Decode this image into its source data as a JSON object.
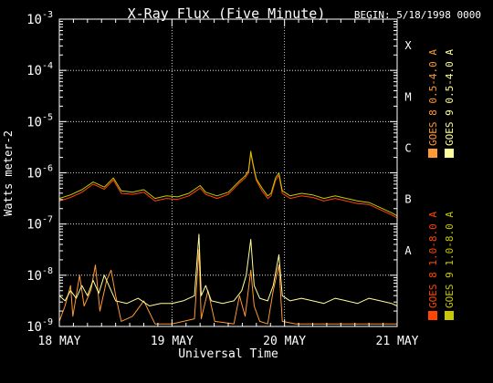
{
  "chart_data": {
    "type": "line",
    "title": "X-Ray Flux (Five Minute)",
    "begin_label": "BEGIN: 5/18/1998 0000",
    "xlabel": "Universal Time",
    "ylabel": "Watts meter-2",
    "x_ticks": [
      {
        "day": 0,
        "label": "18 MAY"
      },
      {
        "day": 1,
        "label": "19 MAY"
      },
      {
        "day": 2,
        "label": "20 MAY"
      },
      {
        "day": 3,
        "label": "21 MAY"
      }
    ],
    "xlim_days": [
      0,
      3
    ],
    "ylim_exp": [
      -9,
      -3
    ],
    "y_ticks": [
      {
        "exp": -9,
        "base": "10",
        "sup": "-9"
      },
      {
        "exp": -8,
        "base": "10",
        "sup": "-8"
      },
      {
        "exp": -7,
        "base": "10",
        "sup": "-7"
      },
      {
        "exp": -6,
        "base": "10",
        "sup": "-6"
      },
      {
        "exp": -5,
        "base": "10",
        "sup": "-5"
      },
      {
        "exp": -4,
        "base": "10",
        "sup": "-4"
      },
      {
        "exp": -3,
        "base": "10",
        "sup": "-3"
      }
    ],
    "flare_classes": [
      {
        "exp": -8,
        "label": "A"
      },
      {
        "exp": -7,
        "label": "B"
      },
      {
        "exp": -6,
        "label": "C"
      },
      {
        "exp": -5,
        "label": "M"
      },
      {
        "exp": -4,
        "label": "X"
      }
    ],
    "grid": true,
    "legend_position": "right",
    "series": [
      {
        "name": "GOES 8 1.0-8.0 A",
        "color": "#ff4500",
        "points": [
          [
            0.0,
            -6.55
          ],
          [
            0.1,
            -6.48
          ],
          [
            0.2,
            -6.38
          ],
          [
            0.3,
            -6.22
          ],
          [
            0.4,
            -6.32
          ],
          [
            0.48,
            -6.14
          ],
          [
            0.55,
            -6.4
          ],
          [
            0.65,
            -6.42
          ],
          [
            0.75,
            -6.38
          ],
          [
            0.85,
            -6.55
          ],
          [
            0.95,
            -6.5
          ],
          [
            1.05,
            -6.52
          ],
          [
            1.15,
            -6.45
          ],
          [
            1.25,
            -6.3
          ],
          [
            1.3,
            -6.42
          ],
          [
            1.4,
            -6.5
          ],
          [
            1.5,
            -6.42
          ],
          [
            1.6,
            -6.2
          ],
          [
            1.65,
            -6.1
          ],
          [
            1.68,
            -6.0
          ],
          [
            1.7,
            -5.62
          ],
          [
            1.72,
            -5.85
          ],
          [
            1.75,
            -6.15
          ],
          [
            1.8,
            -6.35
          ],
          [
            1.85,
            -6.5
          ],
          [
            1.88,
            -6.45
          ],
          [
            1.92,
            -6.15
          ],
          [
            1.95,
            -6.05
          ],
          [
            1.98,
            -6.4
          ],
          [
            2.05,
            -6.5
          ],
          [
            2.15,
            -6.45
          ],
          [
            2.25,
            -6.48
          ],
          [
            2.35,
            -6.55
          ],
          [
            2.45,
            -6.5
          ],
          [
            2.55,
            -6.55
          ],
          [
            2.65,
            -6.6
          ],
          [
            2.75,
            -6.62
          ],
          [
            2.85,
            -6.72
          ],
          [
            2.95,
            -6.82
          ],
          [
            3.0,
            -6.88
          ]
        ]
      },
      {
        "name": "GOES 8 0.5-4.0 A",
        "color": "#ff9933",
        "points": [
          [
            0.0,
            -8.9
          ],
          [
            0.05,
            -8.6
          ],
          [
            0.1,
            -8.2
          ],
          [
            0.12,
            -8.8
          ],
          [
            0.18,
            -8.0
          ],
          [
            0.22,
            -8.6
          ],
          [
            0.28,
            -8.3
          ],
          [
            0.32,
            -7.8
          ],
          [
            0.36,
            -8.7
          ],
          [
            0.42,
            -8.1
          ],
          [
            0.46,
            -7.9
          ],
          [
            0.5,
            -8.4
          ],
          [
            0.55,
            -8.9
          ],
          [
            0.65,
            -8.8
          ],
          [
            0.75,
            -8.5
          ],
          [
            0.85,
            -8.95
          ],
          [
            1.0,
            -8.95
          ],
          [
            1.2,
            -8.85
          ],
          [
            1.24,
            -7.5
          ],
          [
            1.26,
            -8.85
          ],
          [
            1.32,
            -8.3
          ],
          [
            1.38,
            -8.9
          ],
          [
            1.55,
            -8.95
          ],
          [
            1.6,
            -8.4
          ],
          [
            1.65,
            -8.8
          ],
          [
            1.7,
            -7.9
          ],
          [
            1.73,
            -8.6
          ],
          [
            1.78,
            -8.9
          ],
          [
            1.85,
            -8.95
          ],
          [
            1.9,
            -8.3
          ],
          [
            1.95,
            -7.8
          ],
          [
            1.98,
            -8.9
          ],
          [
            2.1,
            -8.95
          ],
          [
            2.4,
            -8.95
          ],
          [
            2.7,
            -8.95
          ],
          [
            3.0,
            -8.95
          ]
        ]
      },
      {
        "name": "GOES 9 1.0-8.0 A",
        "color": "#c8c800",
        "points": [
          [
            0.0,
            -6.5
          ],
          [
            0.1,
            -6.43
          ],
          [
            0.2,
            -6.33
          ],
          [
            0.3,
            -6.18
          ],
          [
            0.4,
            -6.28
          ],
          [
            0.48,
            -6.1
          ],
          [
            0.55,
            -6.35
          ],
          [
            0.65,
            -6.38
          ],
          [
            0.75,
            -6.33
          ],
          [
            0.85,
            -6.5
          ],
          [
            0.95,
            -6.45
          ],
          [
            1.05,
            -6.47
          ],
          [
            1.15,
            -6.4
          ],
          [
            1.25,
            -6.25
          ],
          [
            1.3,
            -6.38
          ],
          [
            1.4,
            -6.45
          ],
          [
            1.5,
            -6.38
          ],
          [
            1.6,
            -6.16
          ],
          [
            1.65,
            -6.06
          ],
          [
            1.68,
            -5.96
          ],
          [
            1.7,
            -5.58
          ],
          [
            1.72,
            -5.82
          ],
          [
            1.75,
            -6.12
          ],
          [
            1.8,
            -6.3
          ],
          [
            1.85,
            -6.45
          ],
          [
            1.88,
            -6.4
          ],
          [
            1.92,
            -6.1
          ],
          [
            1.95,
            -6.0
          ],
          [
            1.98,
            -6.35
          ],
          [
            2.05,
            -6.45
          ],
          [
            2.15,
            -6.4
          ],
          [
            2.25,
            -6.43
          ],
          [
            2.35,
            -6.5
          ],
          [
            2.45,
            -6.45
          ],
          [
            2.55,
            -6.5
          ],
          [
            2.65,
            -6.55
          ],
          [
            2.75,
            -6.58
          ],
          [
            2.85,
            -6.68
          ],
          [
            2.95,
            -6.78
          ],
          [
            3.0,
            -6.84
          ]
        ]
      },
      {
        "name": "GOES 9 0.5-4.0 A",
        "color": "#ffff99",
        "points": [
          [
            0.0,
            -8.4
          ],
          [
            0.05,
            -8.5
          ],
          [
            0.1,
            -8.3
          ],
          [
            0.15,
            -8.45
          ],
          [
            0.2,
            -8.2
          ],
          [
            0.25,
            -8.4
          ],
          [
            0.3,
            -8.1
          ],
          [
            0.35,
            -8.35
          ],
          [
            0.4,
            -8.0
          ],
          [
            0.45,
            -8.25
          ],
          [
            0.5,
            -8.5
          ],
          [
            0.6,
            -8.55
          ],
          [
            0.7,
            -8.45
          ],
          [
            0.8,
            -8.6
          ],
          [
            0.9,
            -8.55
          ],
          [
            1.0,
            -8.55
          ],
          [
            1.1,
            -8.5
          ],
          [
            1.2,
            -8.4
          ],
          [
            1.24,
            -7.2
          ],
          [
            1.26,
            -8.4
          ],
          [
            1.3,
            -8.2
          ],
          [
            1.35,
            -8.5
          ],
          [
            1.45,
            -8.55
          ],
          [
            1.55,
            -8.5
          ],
          [
            1.62,
            -8.3
          ],
          [
            1.66,
            -8.0
          ],
          [
            1.7,
            -7.3
          ],
          [
            1.73,
            -8.2
          ],
          [
            1.78,
            -8.45
          ],
          [
            1.85,
            -8.5
          ],
          [
            1.9,
            -8.2
          ],
          [
            1.95,
            -7.6
          ],
          [
            1.98,
            -8.4
          ],
          [
            2.05,
            -8.5
          ],
          [
            2.15,
            -8.45
          ],
          [
            2.25,
            -8.5
          ],
          [
            2.35,
            -8.55
          ],
          [
            2.45,
            -8.45
          ],
          [
            2.55,
            -8.5
          ],
          [
            2.65,
            -8.55
          ],
          [
            2.75,
            -8.45
          ],
          [
            2.85,
            -8.5
          ],
          [
            2.95,
            -8.55
          ],
          [
            3.0,
            -8.6
          ]
        ]
      }
    ]
  }
}
